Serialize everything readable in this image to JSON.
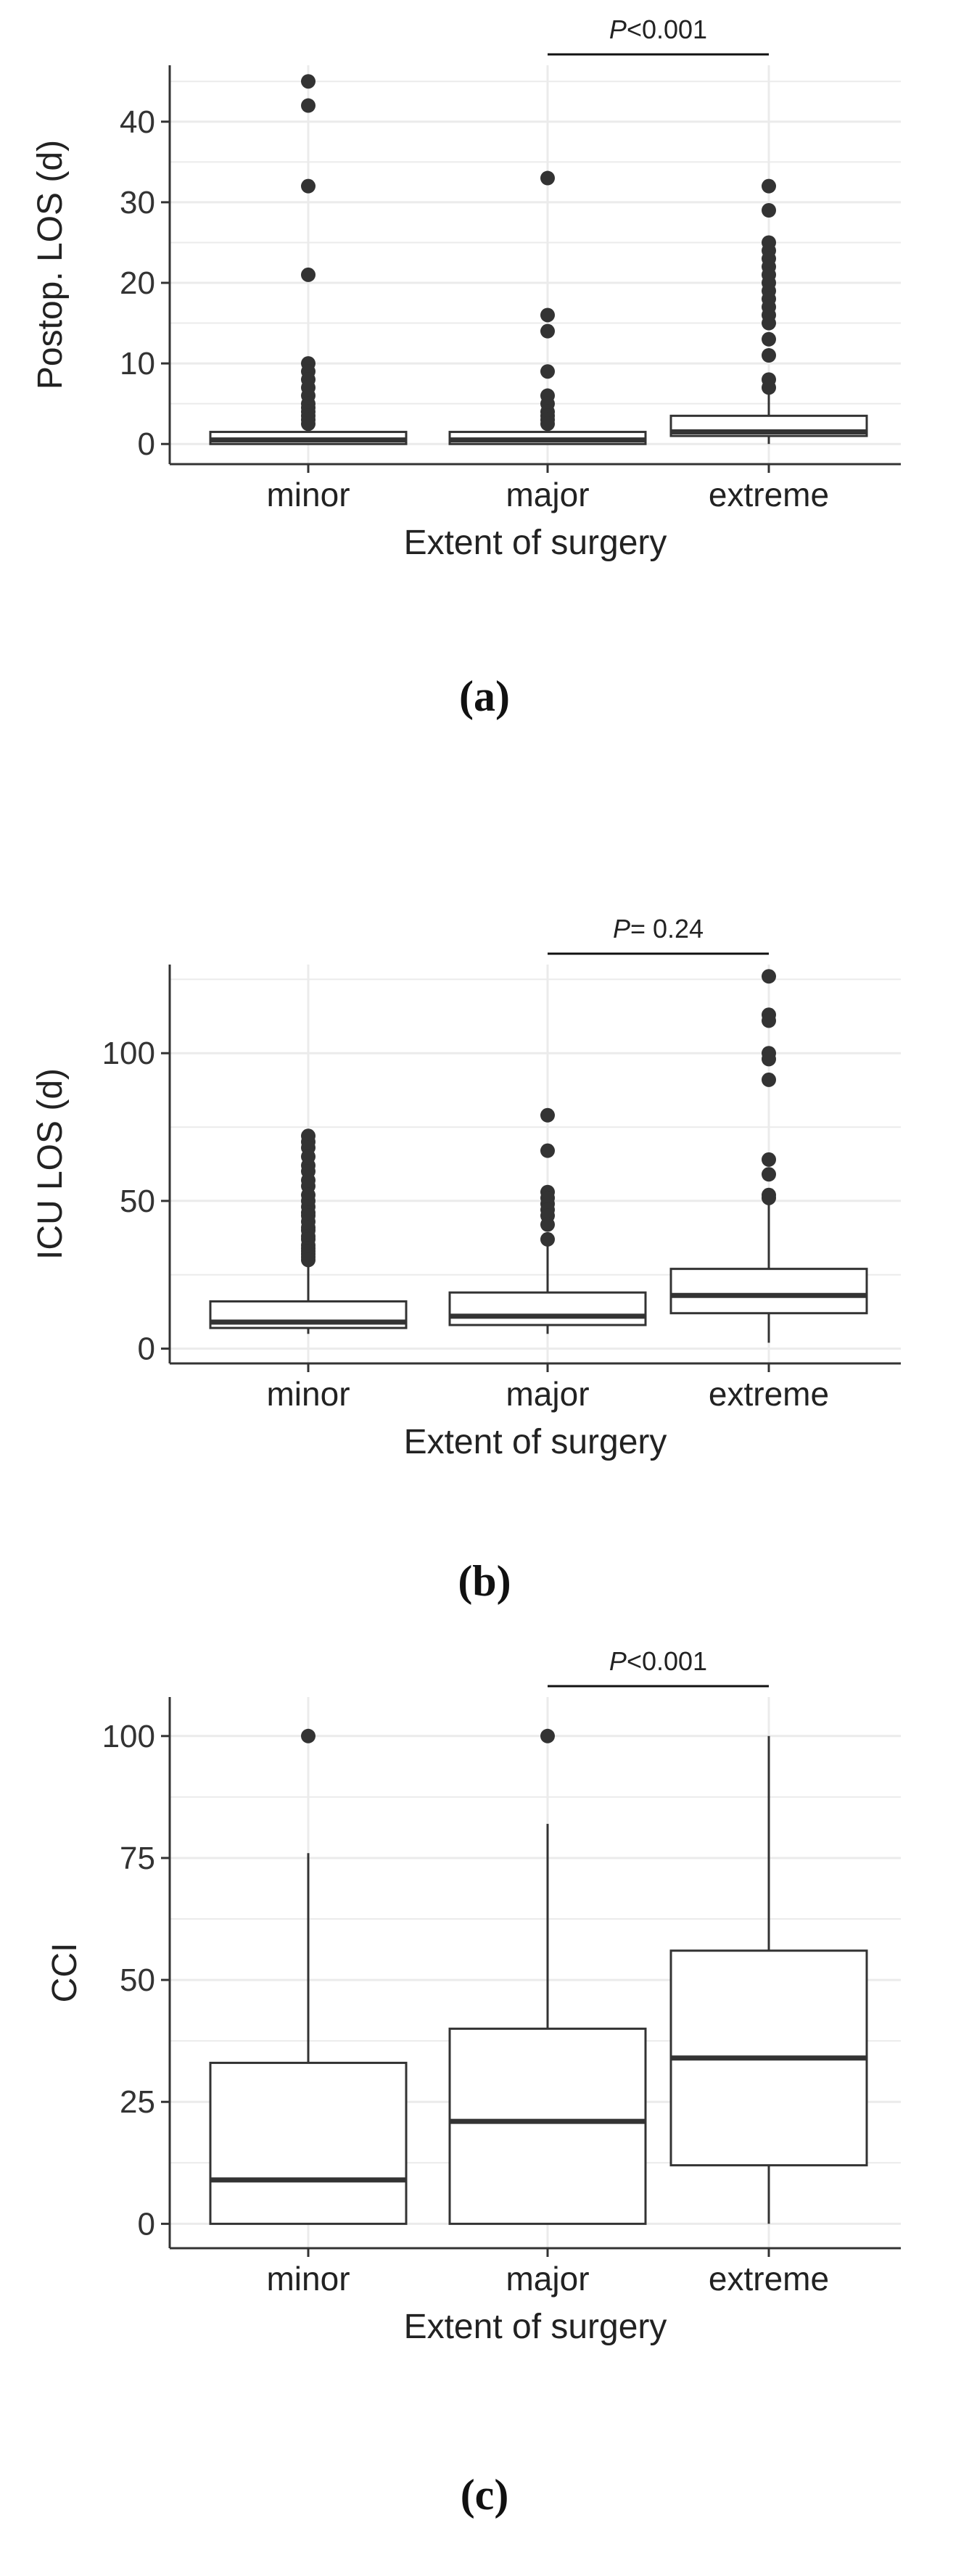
{
  "chart_data": [
    {
      "type": "box",
      "panel_label": "(a)",
      "xlabel": "Extent of surgery",
      "ylabel": "Postop. LOS (d)",
      "ylim": [
        -2.5,
        47
      ],
      "yticks": [
        0,
        10,
        20,
        30,
        40
      ],
      "grid": true,
      "categories": [
        "minor",
        "major",
        "extreme"
      ],
      "boxes": [
        {
          "category": "minor",
          "q1": 0,
          "median": 0.5,
          "q3": 1.5,
          "whisker_low": 0,
          "whisker_high": 2,
          "outliers": [
            45,
            42,
            32,
            21,
            10,
            9,
            8,
            7,
            6,
            5,
            4.5,
            4,
            3.5,
            3,
            2.5
          ]
        },
        {
          "category": "major",
          "q1": 0,
          "median": 0.5,
          "q3": 1.5,
          "whisker_low": 0,
          "whisker_high": 2,
          "outliers": [
            33,
            16,
            14,
            9,
            6,
            5,
            4,
            3.5,
            3,
            2.5
          ]
        },
        {
          "category": "extreme",
          "q1": 1,
          "median": 1.5,
          "q3": 3.5,
          "whisker_low": 0,
          "whisker_high": 6.5,
          "outliers": [
            32,
            29,
            25,
            24,
            23,
            22,
            21,
            20,
            19,
            18,
            17,
            16,
            15,
            13,
            11,
            8,
            7
          ]
        }
      ],
      "annotation": {
        "from": "major",
        "to": "extreme",
        "p_italic": "P",
        "text": "<0.001"
      }
    },
    {
      "type": "box",
      "panel_label": "(b)",
      "xlabel": "Extent of surgery",
      "ylabel": "ICU LOS (d)",
      "ylim": [
        -5,
        130
      ],
      "yticks": [
        0,
        50,
        100
      ],
      "grid": true,
      "categories": [
        "minor",
        "major",
        "extreme"
      ],
      "boxes": [
        {
          "category": "minor",
          "q1": 7,
          "median": 9,
          "q3": 16,
          "whisker_low": 5,
          "whisker_high": 28,
          "outliers": [
            72,
            70,
            68,
            65,
            62,
            60,
            57,
            55,
            52,
            50,
            48,
            46,
            45,
            43,
            41,
            40,
            38,
            37,
            35,
            34,
            33,
            32,
            31,
            30
          ]
        },
        {
          "category": "major",
          "q1": 8,
          "median": 11,
          "q3": 19,
          "whisker_low": 5,
          "whisker_high": 35,
          "outliers": [
            79,
            67,
            53,
            51,
            49,
            47,
            45,
            42,
            37
          ]
        },
        {
          "category": "extreme",
          "q1": 12,
          "median": 18,
          "q3": 27,
          "whisker_low": 2,
          "whisker_high": 49,
          "outliers": [
            126,
            113,
            111,
            100,
            98,
            91,
            64,
            59,
            52,
            51
          ]
        }
      ],
      "annotation": {
        "from": "major",
        "to": "extreme",
        "p_italic": "P",
        "text": "= 0.24"
      }
    },
    {
      "type": "box",
      "panel_label": "(c)",
      "xlabel": "Extent of surgery",
      "ylabel": "CCI",
      "ylim": [
        -5,
        108
      ],
      "yticks": [
        0,
        25,
        50,
        75,
        100
      ],
      "grid": true,
      "categories": [
        "minor",
        "major",
        "extreme"
      ],
      "boxes": [
        {
          "category": "minor",
          "q1": 0,
          "median": 9,
          "q3": 33,
          "whisker_low": 0,
          "whisker_high": 76,
          "outliers": [
            100
          ]
        },
        {
          "category": "major",
          "q1": 0,
          "median": 21,
          "q3": 40,
          "whisker_low": 0,
          "whisker_high": 82,
          "outliers": [
            100
          ]
        },
        {
          "category": "extreme",
          "q1": 12,
          "median": 34,
          "q3": 56,
          "whisker_low": 0,
          "whisker_high": 100,
          "outliers": []
        }
      ],
      "annotation": {
        "from": "major",
        "to": "extreme",
        "p_italic": "P",
        "text": "<0.001"
      }
    }
  ]
}
